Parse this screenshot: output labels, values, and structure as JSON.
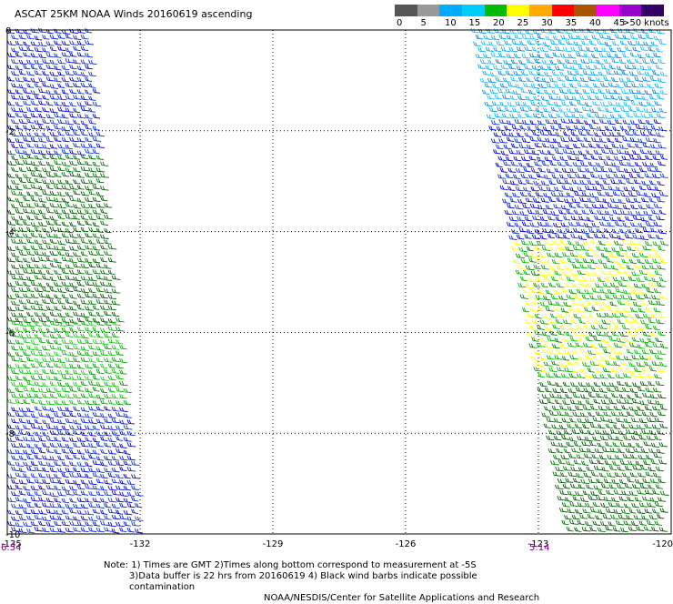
{
  "title": "ASCAT 25KM NOAA Winds 20160619 ascending",
  "colorbar": {
    "labels": [
      "0",
      "5",
      "10",
      "15",
      "20",
      "25",
      "30",
      "35",
      "40",
      "45",
      ">50 knots"
    ],
    "colors": [
      "#555555",
      "#999999",
      "#00aaff",
      "#00ccff",
      "#00bb00",
      "#ffff00",
      "#ffaa00",
      "#ff0000",
      "#aa5500",
      "#ff00ff",
      "#9900cc",
      "#330066"
    ]
  },
  "chart_data": {
    "type": "scatter",
    "title": "ASCAT 25KM NOAA Winds 20160619 ascending",
    "xlabel": "",
    "ylabel": "",
    "xlim": [
      -135,
      -120
    ],
    "ylim": [
      -10,
      0
    ],
    "x_ticks": [
      "-135",
      "-132",
      "-129",
      "-126",
      "-123",
      "-120"
    ],
    "y_ticks": [
      "0",
      "-2",
      "-4",
      "-6",
      "-8",
      "-10"
    ],
    "grid": true,
    "swaths": [
      {
        "name": "western swath",
        "time_label": "6:54",
        "lon_top_range": [
          -135,
          -133.1
        ],
        "lon_bottom_range": [
          -135,
          -131.9
        ],
        "speed_zones": [
          {
            "lat_range": [
              0,
              -2.5
            ],
            "color": "blue",
            "speed_knots": "10-15"
          },
          {
            "lat_range": [
              -2.5,
              -5.8
            ],
            "color": "dark green",
            "speed_knots": "15-20"
          },
          {
            "lat_range": [
              -5.8,
              -7.5
            ],
            "color": "green",
            "speed_knots": "15-20"
          },
          {
            "lat_range": [
              -7.5,
              -10
            ],
            "color": "blue",
            "speed_knots": "10-15"
          }
        ]
      },
      {
        "name": "eastern swath",
        "time_label": "5:14",
        "lon_top_range": [
          -124.5,
          -120
        ],
        "lon_bottom_range": [
          -122.4,
          -120
        ],
        "speed_zones": [
          {
            "lat_range": [
              0,
              -1.8
            ],
            "color": "light blue",
            "speed_knots": "10-15"
          },
          {
            "lat_range": [
              -1.8,
              -4.2
            ],
            "color": "blue",
            "speed_knots": "10-15"
          },
          {
            "lat_range": [
              -4.2,
              -7
            ],
            "color": "green / yellow",
            "speed_knots": "15-25"
          },
          {
            "lat_range": [
              -7,
              -10
            ],
            "color": "dark green",
            "speed_knots": "15-20"
          }
        ]
      }
    ]
  },
  "times": {
    "left": "6:54",
    "right": "5:14"
  },
  "notes": {
    "line1": "Note: 1) Times are GMT 2)Times along bottom correspond to measurement at -5S",
    "line2": "3)Data buffer is 22 hrs from 20160619 4) Black wind barbs indicate possible contamination",
    "line3": "NOAA/NESDIS/Center for Satellite Applications and Research"
  }
}
